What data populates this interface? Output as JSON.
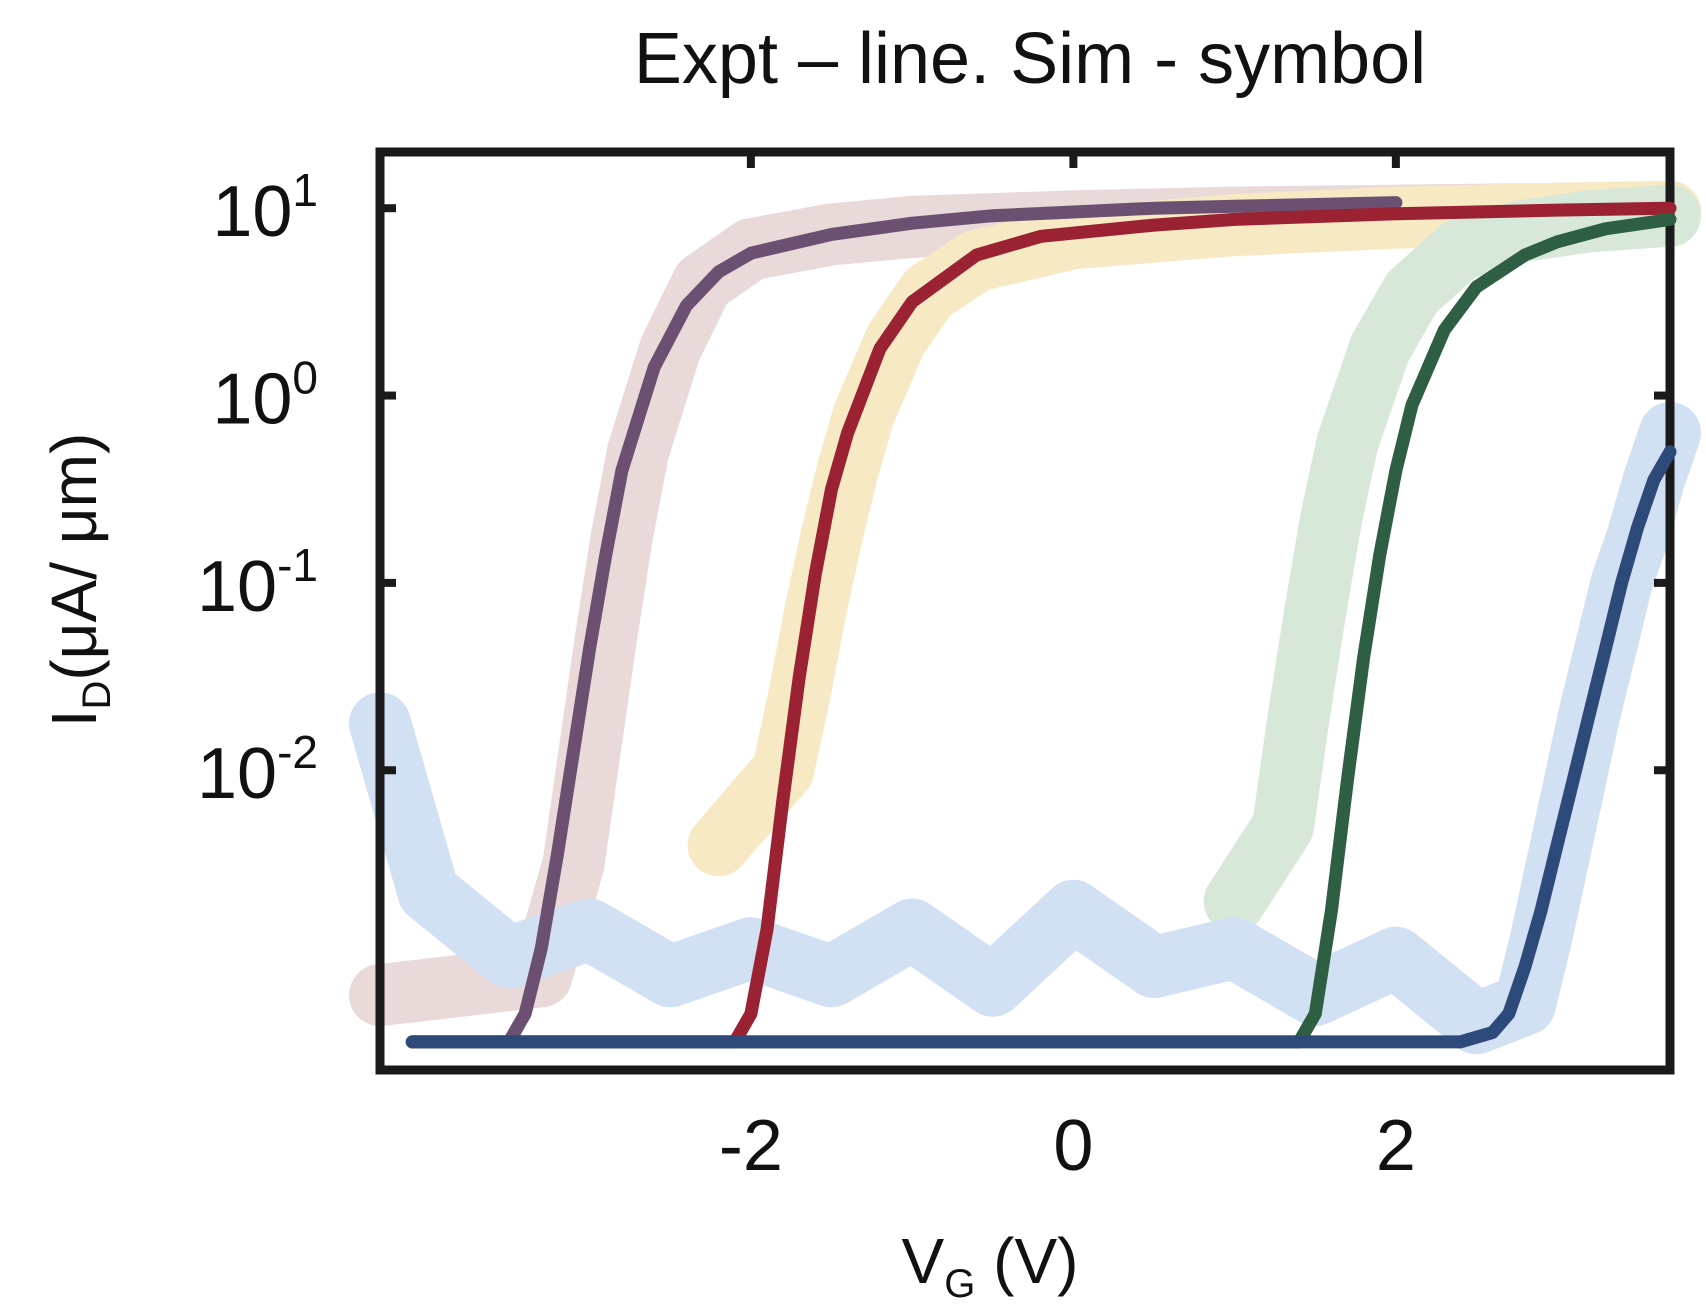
{
  "chart_data": {
    "type": "line",
    "title": "Expt – line. Sim - symbol",
    "xlabel": {
      "main": "V",
      "sub": "G",
      "unit": " (V)"
    },
    "ylabel": {
      "main": "I",
      "sub": "D",
      "unit": "(μA/ μm)"
    },
    "xlim": [
      -4.3,
      3.7
    ],
    "ylim": [
      -3.6,
      1.3
    ],
    "y_scale": "log",
    "grid": false,
    "legend": "none",
    "x_ticks": [
      {
        "value": -2,
        "label": "-2"
      },
      {
        "value": 0,
        "label": "0"
      },
      {
        "value": 2,
        "label": "2"
      }
    ],
    "y_ticks": [
      {
        "value": 1,
        "base": "10",
        "exp": "1"
      },
      {
        "value": 0,
        "base": "10",
        "exp": "0"
      },
      {
        "value": -1,
        "base": "10",
        "exp": "-1"
      },
      {
        "value": -2,
        "base": "10",
        "exp": "-2"
      }
    ],
    "series": [
      {
        "kind": "experiment",
        "color": "#6b5072",
        "x": [
          -4.1,
          -3.5,
          -3.4,
          -3.3,
          -3.2,
          -3.1,
          -3.0,
          -2.9,
          -2.8,
          -2.6,
          -2.4,
          -2.2,
          -2.0,
          -1.5,
          -1.0,
          -0.5,
          0.0,
          0.5,
          1.0,
          1.5,
          2.0
        ],
        "y": [
          -3.45,
          -3.45,
          -3.3,
          -2.95,
          -2.45,
          -1.9,
          -1.35,
          -0.85,
          -0.4,
          0.15,
          0.48,
          0.66,
          0.76,
          0.86,
          0.92,
          0.96,
          0.98,
          1.0,
          1.01,
          1.02,
          1.03
        ]
      },
      {
        "kind": "simulation",
        "color": "#ead9d9",
        "x": [
          -4.3,
          -3.3,
          -3.1,
          -3.0,
          -2.9,
          -2.8,
          -2.7,
          -2.5,
          -2.3,
          -2.0,
          -1.5,
          -1.0,
          0.0,
          1.0,
          2.0,
          3.0,
          3.7
        ],
        "y": [
          -3.2,
          -3.1,
          -2.5,
          -1.9,
          -1.3,
          -0.75,
          -0.3,
          0.25,
          0.6,
          0.78,
          0.86,
          0.9,
          0.93,
          0.95,
          0.96,
          0.97,
          0.98
        ]
      },
      {
        "kind": "experiment",
        "color": "#9a2233",
        "x": [
          -4.1,
          -2.1,
          -2.0,
          -1.9,
          -1.8,
          -1.7,
          -1.6,
          -1.5,
          -1.4,
          -1.2,
          -1.0,
          -0.6,
          -0.2,
          0.5,
          1.0,
          2.0,
          3.0,
          3.7
        ],
        "y": [
          -3.45,
          -3.45,
          -3.3,
          -2.85,
          -2.15,
          -1.5,
          -0.95,
          -0.5,
          -0.2,
          0.25,
          0.5,
          0.75,
          0.85,
          0.91,
          0.94,
          0.97,
          0.99,
          1.0
        ]
      },
      {
        "kind": "simulation",
        "color": "#f6e9c4",
        "x": [
          -2.2,
          -1.8,
          -1.7,
          -1.6,
          -1.5,
          -1.4,
          -1.3,
          -1.1,
          -0.9,
          -0.6,
          0.0,
          1.0,
          2.0,
          3.0,
          3.7
        ],
        "y": [
          -2.4,
          -2.0,
          -1.6,
          -1.15,
          -0.75,
          -0.4,
          -0.1,
          0.3,
          0.55,
          0.72,
          0.84,
          0.91,
          0.95,
          0.97,
          0.98
        ]
      },
      {
        "kind": "experiment",
        "color": "#2f5f43",
        "x": [
          -4.1,
          1.4,
          1.5,
          1.6,
          1.7,
          1.8,
          1.9,
          2.0,
          2.1,
          2.3,
          2.5,
          2.8,
          3.0,
          3.3,
          3.7
        ],
        "y": [
          -3.45,
          -3.45,
          -3.3,
          -2.75,
          -2.05,
          -1.4,
          -0.85,
          -0.4,
          -0.05,
          0.35,
          0.58,
          0.75,
          0.82,
          0.89,
          0.94
        ]
      },
      {
        "kind": "simulation",
        "color": "#d8e8d8",
        "x": [
          1.0,
          1.3,
          1.4,
          1.5,
          1.6,
          1.7,
          1.9,
          2.1,
          2.4,
          2.8,
          3.2,
          3.7
        ],
        "y": [
          -2.7,
          -2.3,
          -1.7,
          -1.15,
          -0.65,
          -0.25,
          0.25,
          0.55,
          0.78,
          0.88,
          0.93,
          0.96
        ]
      },
      {
        "kind": "experiment",
        "color": "#2e4a7a",
        "x": [
          -4.1,
          2.4,
          2.6,
          2.7,
          2.8,
          2.9,
          3.0,
          3.1,
          3.2,
          3.3,
          3.4,
          3.5,
          3.6,
          3.7
        ],
        "y": [
          -3.45,
          -3.45,
          -3.4,
          -3.3,
          -3.05,
          -2.75,
          -2.4,
          -2.05,
          -1.7,
          -1.35,
          -1.0,
          -0.7,
          -0.45,
          -0.3
        ]
      },
      {
        "kind": "simulation",
        "color": "#d2e0f4",
        "x": [
          -4.3,
          -4.0,
          -3.5,
          -3.0,
          -2.5,
          -2.0,
          -1.5,
          -1.0,
          -0.5,
          0.0,
          0.5,
          1.0,
          1.5,
          2.0,
          2.5,
          2.8,
          2.9,
          3.0,
          3.1,
          3.2,
          3.3,
          3.4,
          3.5,
          3.6,
          3.7
        ],
        "y": [
          -1.75,
          -2.65,
          -3.0,
          -2.85,
          -3.1,
          -2.95,
          -3.1,
          -2.85,
          -3.15,
          -2.75,
          -3.05,
          -2.95,
          -3.2,
          -3.0,
          -3.35,
          -3.25,
          -2.9,
          -2.5,
          -2.1,
          -1.7,
          -1.35,
          -1.0,
          -0.75,
          -0.45,
          -0.2
        ]
      }
    ]
  }
}
